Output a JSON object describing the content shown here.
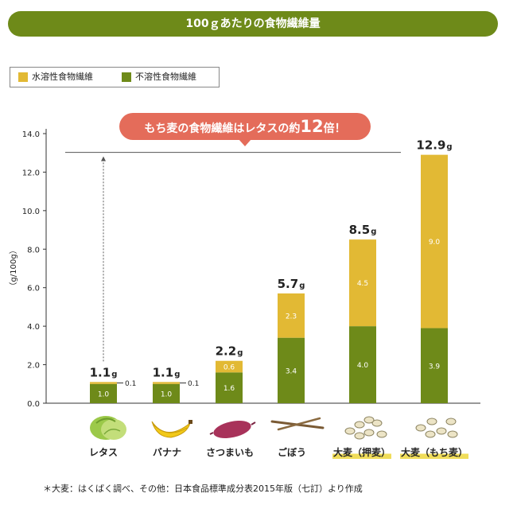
{
  "title": "100ｇあたりの食物繊維量",
  "legend": {
    "soluble": "水溶性食物繊維",
    "insoluble": "不溶性食物繊維"
  },
  "colors": {
    "brand": "#6e8a19",
    "soluble": "#e2b934",
    "insoluble": "#6e8a19",
    "callout": "#e46c5a",
    "highlight": "#f0dd5a"
  },
  "callout": {
    "prefix": "もち麦の食物繊維はレタスの約",
    "number": "12",
    "suffix": "倍！"
  },
  "foods": [
    {
      "label": "レタス",
      "highlight": false
    },
    {
      "label": "バナナ",
      "highlight": false
    },
    {
      "label": "さつまいも",
      "highlight": false
    },
    {
      "label": "ごぼう",
      "highlight": false
    },
    {
      "label": "大麦（押麦）",
      "highlight": true
    },
    {
      "label": "大麦（もち麦）",
      "highlight": true
    }
  ],
  "footnote": "＊大麦：はくばく調べ、その他：日本食品標準成分表2015年版（七訂）より作成",
  "chart_data": {
    "type": "bar",
    "stacked": true,
    "title": "100ｇあたりの食物繊維量",
    "ylabel": "（g/100g）",
    "xlabel": "",
    "ylim": [
      0,
      14
    ],
    "yticks": [
      "0.0",
      "2.0",
      "4.0",
      "6.0",
      "8.0",
      "10.0",
      "12.0",
      "14.0"
    ],
    "categories": [
      "レタス",
      "バナナ",
      "さつまいも",
      "ごぼう",
      "大麦（押麦）",
      "大麦（もち麦）"
    ],
    "series": [
      {
        "name": "不溶性食物繊維",
        "values": [
          1.0,
          1.0,
          1.6,
          3.4,
          4.0,
          3.9
        ],
        "labels": [
          "1.0",
          "1.0",
          "1.6",
          "3.4",
          "4.0",
          "3.9"
        ]
      },
      {
        "name": "水溶性食物繊維",
        "values": [
          0.1,
          0.1,
          0.6,
          2.3,
          4.5,
          9.0
        ],
        "labels": [
          "0.1",
          "0.1",
          "0.6",
          "2.3",
          "4.5",
          "9.0"
        ]
      }
    ],
    "totals": [
      1.1,
      1.1,
      2.2,
      5.7,
      8.5,
      12.9
    ],
    "total_labels": [
      "1.1",
      "1.1",
      "2.2",
      "5.7",
      "8.5",
      "12.9"
    ],
    "unit": "g",
    "reference_value": 12.9
  }
}
